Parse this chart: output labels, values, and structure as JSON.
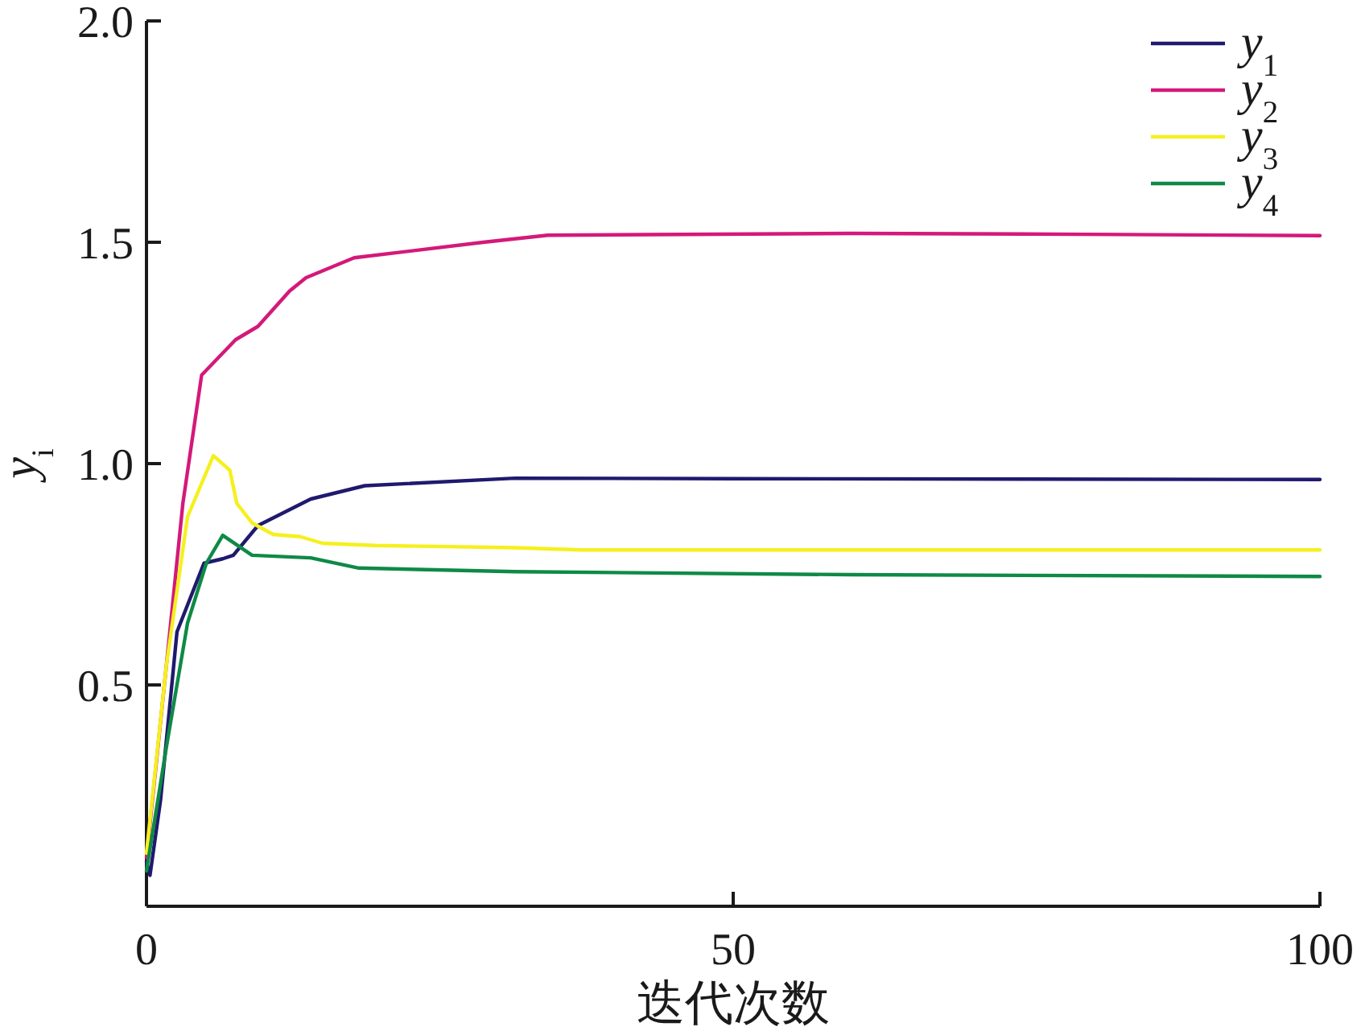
{
  "chart_data": {
    "type": "line",
    "xlabel": "迭代次数",
    "ylabel": "y$_{i}$",
    "xlim": [
      0,
      100
    ],
    "xticks": [
      0,
      50,
      100
    ],
    "ylim": [
      0,
      2
    ],
    "yticks": [
      0.5,
      {
        "value": 1,
        "label": "1.0"
      },
      1.5,
      {
        "value": 2,
        "label": "2.0"
      }
    ],
    "grid": false,
    "legend": "top right",
    "line_style": "solid",
    "marker": "none",
    "series": [
      {
        "name": "y$_{1}$",
        "color": "#1f1a6e",
        "x": [
          0,
          0.3,
          1.2,
          2.6,
          4.9,
          6.5,
          7.4,
          9.5,
          14,
          18.6,
          31.4,
          50,
          75,
          100
        ],
        "values": [
          0.1,
          0.07,
          0.24,
          0.62,
          0.775,
          0.785,
          0.793,
          0.86,
          0.92,
          0.95,
          0.967,
          0.966,
          0.965,
          0.964
        ]
      },
      {
        "name": "y$_{2}$",
        "color": "#d4197a",
        "x": [
          0,
          1.7,
          3.1,
          4.7,
          7.6,
          9.5,
          12.2,
          13.6,
          17.7,
          28.7,
          34.2,
          60,
          80,
          100
        ],
        "values": [
          0.11,
          0.545,
          0.91,
          1.2,
          1.28,
          1.31,
          1.39,
          1.42,
          1.465,
          1.5,
          1.516,
          1.52,
          1.518,
          1.515
        ]
      },
      {
        "name": "y$_{3}$",
        "color": "#f5f01e",
        "x": [
          0,
          1.7,
          3.5,
          5.7,
          7.1,
          7.7,
          9,
          10.8,
          13.1,
          15,
          19.5,
          31.4,
          37,
          70,
          100
        ],
        "values": [
          0.12,
          0.545,
          0.88,
          1.018,
          0.985,
          0.91,
          0.866,
          0.84,
          0.835,
          0.82,
          0.815,
          0.81,
          0.805,
          0.805,
          0.805
        ]
      },
      {
        "name": "y$_{4}$",
        "color": "#0e8a46",
        "x": [
          0,
          1.7,
          3.5,
          5.1,
          6.5,
          9,
          14,
          18.1,
          31.4,
          60,
          100
        ],
        "values": [
          0.08,
          0.36,
          0.64,
          0.775,
          0.838,
          0.793,
          0.787,
          0.764,
          0.756,
          0.749,
          0.745
        ]
      }
    ]
  }
}
